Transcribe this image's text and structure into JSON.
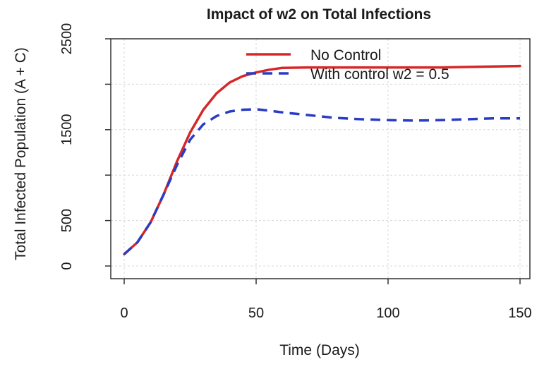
{
  "chart_data": {
    "type": "line",
    "title": "Impact of w2 on Total Infections",
    "xlabel": "Time (Days)",
    "ylabel": "Total Infected Population (A + C)",
    "xlim": [
      0,
      150
    ],
    "ylim": [
      0,
      2500
    ],
    "xticks": [
      0,
      50,
      100,
      150
    ],
    "yticks": [
      0,
      500,
      1000,
      1500,
      2000,
      2500
    ],
    "ytick_labels": [
      "0",
      "500",
      "",
      "1500",
      "",
      "2500"
    ],
    "grid": true,
    "legend_position": "top-right",
    "series": [
      {
        "name": "No Control",
        "color": "#d62728",
        "style": "solid",
        "x": [
          0,
          5,
          10,
          15,
          20,
          25,
          30,
          35,
          40,
          45,
          50,
          55,
          60,
          70,
          80,
          90,
          100,
          110,
          120,
          130,
          140,
          150
        ],
        "y": [
          130,
          260,
          480,
          790,
          1150,
          1470,
          1720,
          1900,
          2020,
          2090,
          2130,
          2160,
          2180,
          2185,
          2185,
          2185,
          2185,
          2185,
          2185,
          2190,
          2195,
          2200
        ]
      },
      {
        "name": "With control w2 = 0.5",
        "color": "#2b3cc4",
        "style": "dashed",
        "x": [
          0,
          5,
          10,
          15,
          20,
          25,
          30,
          35,
          40,
          45,
          50,
          55,
          60,
          70,
          80,
          90,
          100,
          110,
          120,
          130,
          140,
          150
        ],
        "y": [
          130,
          260,
          480,
          790,
          1110,
          1390,
          1560,
          1650,
          1700,
          1720,
          1725,
          1710,
          1690,
          1660,
          1630,
          1615,
          1605,
          1600,
          1605,
          1615,
          1625,
          1625
        ]
      }
    ]
  }
}
